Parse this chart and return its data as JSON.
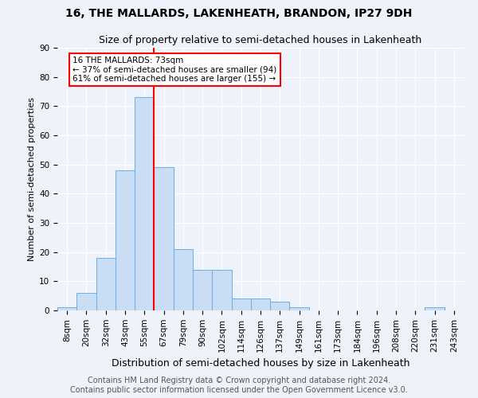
{
  "title": "16, THE MALLARDS, LAKENHEATH, BRANDON, IP27 9DH",
  "subtitle": "Size of property relative to semi-detached houses in Lakenheath",
  "xlabel": "Distribution of semi-detached houses by size in Lakenheath",
  "ylabel": "Number of semi-detached properties",
  "bar_labels": [
    "8sqm",
    "20sqm",
    "32sqm",
    "43sqm",
    "55sqm",
    "67sqm",
    "79sqm",
    "90sqm",
    "102sqm",
    "114sqm",
    "126sqm",
    "137sqm",
    "149sqm",
    "161sqm",
    "173sqm",
    "184sqm",
    "196sqm",
    "208sqm",
    "220sqm",
    "231sqm",
    "243sqm"
  ],
  "bar_values": [
    1,
    6,
    18,
    48,
    73,
    49,
    21,
    14,
    14,
    4,
    4,
    3,
    1,
    0,
    0,
    0,
    0,
    0,
    0,
    1,
    0
  ],
  "bar_color": "#c9ddf5",
  "bar_edge_color": "#6aaee8",
  "property_label": "16 THE MALLARDS: 73sqm",
  "smaller_pct": "37%",
  "smaller_count": 94,
  "larger_pct": "61%",
  "larger_count": 155,
  "vline_x_index": 4,
  "vline_color": "red",
  "annotation_box_color": "white",
  "annotation_box_edge": "red",
  "footer1": "Contains HM Land Registry data © Crown copyright and database right 2024.",
  "footer2": "Contains public sector information licensed under the Open Government Licence v3.0.",
  "title_fontsize": 10,
  "subtitle_fontsize": 9,
  "ylabel_fontsize": 8,
  "xlabel_fontsize": 9,
  "tick_fontsize": 7.5,
  "annotation_fontsize": 7.5,
  "footer_fontsize": 7,
  "ylim": [
    0,
    90
  ],
  "background_color": "#edf2fb",
  "grid_color": "white"
}
